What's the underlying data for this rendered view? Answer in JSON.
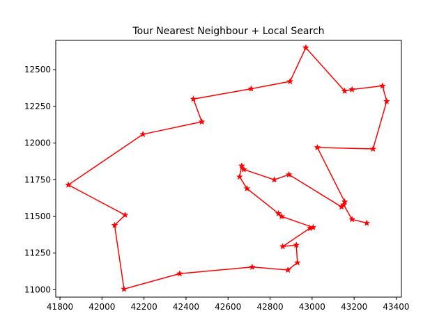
{
  "chart_data": {
    "type": "line",
    "title": "Tour Nearest Neighbour + Local Search",
    "xlabel": "",
    "ylabel": "",
    "xlim": [
      41780,
      43425
    ],
    "ylim": [
      10950,
      12700
    ],
    "xticks": [
      41800,
      42000,
      42200,
      42400,
      42600,
      42800,
      43000,
      43200,
      43400
    ],
    "yticks": [
      11000,
      11250,
      11500,
      11750,
      12000,
      12250,
      12500
    ],
    "grid": false,
    "line_color": "#ff0000",
    "marker": "star",
    "series": [
      {
        "points": [
          [
            42970,
            12650
          ],
          [
            42895,
            12420
          ],
          [
            42710,
            12370
          ],
          [
            42435,
            12300
          ],
          [
            42475,
            12145
          ],
          [
            42195,
            12060
          ],
          [
            41840,
            11715
          ],
          [
            42110,
            11510
          ],
          [
            42060,
            11440
          ],
          [
            42105,
            11005
          ],
          [
            42370,
            11110
          ],
          [
            42715,
            11155
          ],
          [
            42885,
            11135
          ],
          [
            42930,
            11185
          ],
          [
            42925,
            11305
          ],
          [
            42860,
            11295
          ],
          [
            42990,
            11420
          ],
          [
            43005,
            11425
          ],
          [
            42855,
            11500
          ],
          [
            42840,
            11520
          ],
          [
            42690,
            11690
          ],
          [
            42655,
            11770
          ],
          [
            42665,
            11845
          ],
          [
            42675,
            11820
          ],
          [
            42820,
            11750
          ],
          [
            42890,
            11785
          ],
          [
            43140,
            11565
          ],
          [
            43150,
            11580
          ],
          [
            43155,
            11600
          ],
          [
            43025,
            11970
          ],
          [
            43290,
            11960
          ],
          [
            43355,
            12285
          ],
          [
            43335,
            12390
          ],
          [
            43190,
            12365
          ],
          [
            43155,
            12355
          ],
          [
            42970,
            12650
          ]
        ]
      },
      {
        "points": [
          [
            43150,
            11580
          ],
          [
            43190,
            11480
          ],
          [
            43260,
            11455
          ]
        ]
      }
    ]
  }
}
